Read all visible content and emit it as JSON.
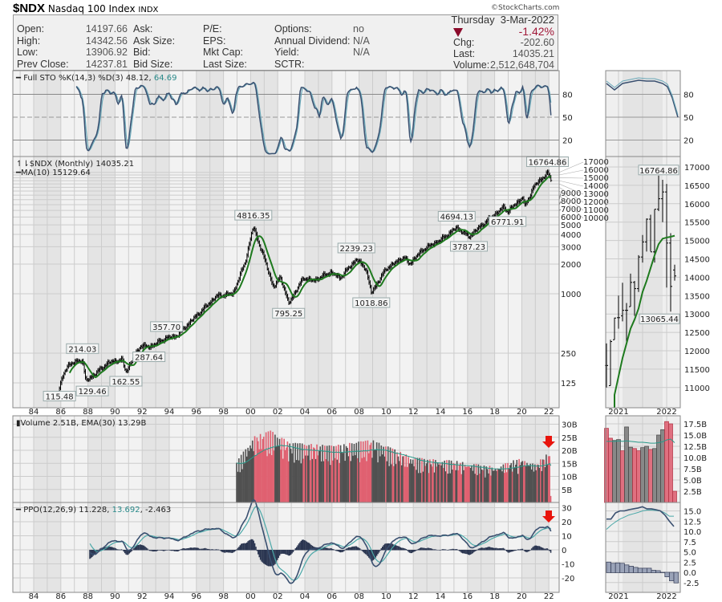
{
  "header": {
    "symbol": "$NDX",
    "name": "Nasdaq 100 Index",
    "exchange": "INDX",
    "copyright": "©StockCharts.com",
    "col1": [
      {
        "label": "Open:",
        "value": "14197.66"
      },
      {
        "label": "High:",
        "value": "14342.56"
      },
      {
        "label": "Low:",
        "value": "13906.92"
      },
      {
        "label": "Prev Close:",
        "value": "14237.81"
      }
    ],
    "col2": [
      "Ask:",
      "Ask Size:",
      "Bid:",
      "Bid Size:"
    ],
    "col3": [
      "P/E:",
      "EPS:",
      "Mkt Cap:",
      "Last Size:"
    ],
    "col4": [
      {
        "label": "Options:",
        "value": "no"
      },
      {
        "label": "Annual Dividend:",
        "value": "N/A"
      },
      {
        "label": "Yield:",
        "value": "N/A"
      },
      {
        "label": "SCTR:",
        "value": ""
      }
    ],
    "date": "Thursday  3-Mar-2022",
    "pct_change": "-1.42%",
    "chg_label": "Chg:",
    "chg": "-202.60",
    "last_label": "Last:",
    "last": "14035.21",
    "volume_label": "Volume:",
    "volume": "2,512,648,704",
    "direction": "down",
    "down_color": "#8b0a2a"
  },
  "chart_data": [
    {
      "type": "line",
      "panel": "sto",
      "legend": "Full STO %K(14,3) %D(3)",
      "k": "48.12",
      "d": "64.69",
      "yticks": [
        80,
        50,
        20
      ]
    },
    {
      "type": "ohlc",
      "panel": "price",
      "legend": "$NDX (Monthly) 14035.21",
      "ma_legend": "MA(10) 15129.64",
      "scale": "log",
      "yticks": [
        "17000",
        "16000",
        "15000",
        "14000",
        "13000",
        "12000",
        "11000",
        "10000",
        "9000",
        "8000",
        "7000",
        "6000",
        "5000",
        "4000",
        "3000",
        "2000",
        "1000",
        "250",
        "125"
      ],
      "keypoints": [
        [
          1985.9,
          115
        ],
        [
          1986.5,
          190
        ],
        [
          1987.6,
          214
        ],
        [
          1987.85,
          129.46
        ],
        [
          1989.5,
          200
        ],
        [
          1990.5,
          215
        ],
        [
          1990.8,
          162.55
        ],
        [
          1991.9,
          300
        ],
        [
          1992.5,
          287.64
        ],
        [
          1993.8,
          357.7
        ],
        [
          1994.5,
          370
        ],
        [
          1995.9,
          580
        ],
        [
          1997.5,
          950
        ],
        [
          1998.7,
          1000
        ],
        [
          1999.6,
          2100
        ],
        [
          2000.2,
          4816.35
        ],
        [
          2000.5,
          3600
        ],
        [
          2001.0,
          2300
        ],
        [
          2001.7,
          1150
        ],
        [
          2002.2,
          1500
        ],
        [
          2002.8,
          795.25
        ],
        [
          2003.9,
          1450
        ],
        [
          2004.6,
          1350
        ],
        [
          2005.9,
          1650
        ],
        [
          2006.6,
          1450
        ],
        [
          2007.8,
          2239.23
        ],
        [
          2008.5,
          1800
        ],
        [
          2008.9,
          1018.86
        ],
        [
          2010.0,
          1800
        ],
        [
          2011.3,
          2350
        ],
        [
          2011.7,
          2000
        ],
        [
          2012.7,
          2800
        ],
        [
          2014.0,
          3500
        ],
        [
          2015.2,
          4694.13
        ],
        [
          2016.1,
          3787.23
        ],
        [
          2017.0,
          4900
        ],
        [
          2018.7,
          7600
        ],
        [
          2018.95,
          6771.91
        ],
        [
          2020.1,
          9600
        ],
        [
          2020.2,
          7500
        ],
        [
          2020.9,
          12300
        ],
        [
          2021.9,
          16764.86
        ],
        [
          2022.17,
          14035.21
        ]
      ],
      "annotations": [
        {
          "text": "115.48",
          "at": [
            1985.9,
            115
          ],
          "pos": "below"
        },
        {
          "text": "214.03",
          "at": [
            1987.6,
            214
          ],
          "pos": "above"
        },
        {
          "text": "129.46",
          "at": [
            1987.85,
            129.46
          ],
          "pos": "below"
        },
        {
          "text": "162.55",
          "at": [
            1990.8,
            162.55
          ],
          "pos": "below"
        },
        {
          "text": "287.64",
          "at": [
            1992.5,
            287.64
          ],
          "pos": "below"
        },
        {
          "text": "357.70",
          "at": [
            1993.8,
            357.7
          ],
          "pos": "above"
        },
        {
          "text": "4816.35",
          "at": [
            2000.2,
            4816.35
          ],
          "pos": "above"
        },
        {
          "text": "795.25",
          "at": [
            2002.8,
            795.25
          ],
          "pos": "below"
        },
        {
          "text": "2239.23",
          "at": [
            2007.8,
            2239.23
          ],
          "pos": "above"
        },
        {
          "text": "1018.86",
          "at": [
            2008.9,
            1018.86
          ],
          "pos": "below"
        },
        {
          "text": "4694.13",
          "at": [
            2015.2,
            4694.13
          ],
          "pos": "above"
        },
        {
          "text": "3787.23",
          "at": [
            2016.1,
            3787.23
          ],
          "pos": "below"
        },
        {
          "text": "6771.91",
          "at": [
            2018.95,
            6771.91
          ],
          "pos": "below"
        },
        {
          "text": "16764.86",
          "at": [
            2021.9,
            16764.86
          ],
          "pos": "above"
        }
      ]
    },
    {
      "type": "bar",
      "panel": "volume",
      "legend": "Volume 2.51B, EMA(30) 13.29B",
      "yticks": [
        "30B",
        "25B",
        "20B",
        "15B",
        "10B",
        "5B"
      ],
      "keypoints_billions": [
        [
          1998.9,
          13
        ],
        [
          2000.2,
          22
        ],
        [
          2001.5,
          24
        ],
        [
          2003,
          20
        ],
        [
          2006,
          19
        ],
        [
          2009,
          21
        ],
        [
          2012,
          15
        ],
        [
          2015,
          14
        ],
        [
          2018,
          12
        ],
        [
          2020,
          15
        ],
        [
          2021,
          13
        ],
        [
          2022.1,
          17
        ]
      ],
      "colors": {
        "down": "#e06070",
        "up": "#808080"
      }
    },
    {
      "type": "line",
      "panel": "ppo",
      "legend": "PPO(12,26,9)",
      "ppo": "11.228",
      "signal": "13.692",
      "hist": "-2.463",
      "yticks": [
        30,
        20,
        10,
        0,
        -10,
        -20
      ]
    },
    {
      "type": "ohlc",
      "panel": "zoom-price",
      "xticks": [
        "2021",
        "2022"
      ],
      "yticks": [
        17000,
        16500,
        16000,
        15500,
        15000,
        14500,
        14000,
        13500,
        13000,
        12500,
        12000,
        11500,
        11000
      ],
      "bars": [
        [
          11600,
          12200,
          11000,
          11600
        ],
        [
          11050,
          12300,
          11050,
          12250
        ],
        [
          12300,
          12900,
          12300,
          12890
        ],
        [
          12900,
          13500,
          12600,
          12900
        ],
        [
          12950,
          13850,
          12800,
          13100
        ],
        [
          13100,
          13300,
          12200,
          13100
        ],
        [
          13200,
          14100,
          13200,
          13860
        ],
        [
          13860,
          13900,
          12950,
          13690
        ],
        [
          13690,
          14600,
          13600,
          14550
        ],
        [
          14550,
          15150,
          14400,
          14960
        ],
        [
          14960,
          15600,
          14700,
          15580
        ],
        [
          15580,
          15700,
          14700,
          14690
        ],
        [
          14690,
          15850,
          14400,
          15850
        ],
        [
          15850,
          16764.86,
          15800,
          16135
        ],
        [
          16135,
          16650,
          15500,
          16320
        ],
        [
          16320,
          16540,
          13720,
          14930
        ],
        [
          14930,
          15200,
          13065.44,
          13750
        ],
        [
          14197.66,
          14342.56,
          13906.92,
          14035.21
        ]
      ],
      "ma10": [
        null,
        null,
        10800,
        11300,
        11800,
        12200,
        12600,
        12850,
        13150,
        13600,
        13900,
        14250,
        14600,
        14900,
        15050,
        15080,
        15100,
        15130
      ],
      "annotations": [
        {
          "text": "16764.86",
          "pos": "above"
        },
        {
          "text": "13065.44",
          "pos": "below"
        }
      ]
    },
    {
      "type": "bar",
      "panel": "zoom-volume",
      "yticks": [
        "17.5B",
        "15.0B",
        "12.5B",
        "10.0B",
        "7.5B",
        "5.0B",
        "2.5B"
      ],
      "values_billions": [
        16.5,
        14.3,
        13.8,
        14,
        11.5,
        16.8,
        12.3,
        12,
        11.5,
        12.2,
        12.5,
        11.8,
        12,
        15,
        16.2,
        18,
        17.5,
        2.5
      ],
      "down": [
        1,
        1,
        0,
        0,
        1,
        0,
        0,
        1,
        1,
        0,
        0,
        1,
        0,
        0,
        0,
        1,
        1,
        1
      ],
      "ema30": [
        13.6,
        13.6,
        13.6,
        13.7,
        13.6,
        13.7,
        13.6,
        13.5,
        13.4,
        13.4,
        13.3,
        13.2,
        13.2,
        13.3,
        13.5,
        13.9,
        14.1,
        13.3
      ]
    },
    {
      "type": "line",
      "panel": "zoom-ppo",
      "yticks": [
        "15.0",
        "12.5",
        "10.0",
        "7.5",
        "5.0",
        "2.5",
        "0.0",
        "-2.5"
      ],
      "ppo": [
        13,
        13,
        14.5,
        15,
        15,
        15.3,
        15.5,
        15.7,
        16,
        15.5,
        15.5,
        15.3,
        15,
        14,
        12.5,
        11.2
      ],
      "signal": [
        10.5,
        11.5,
        12.3,
        13,
        13.5,
        14,
        14.3,
        14.6,
        15,
        15.2,
        15.2,
        15.1,
        15,
        14.5,
        13.7,
        13.7
      ],
      "hist": [
        2.5,
        2.2,
        2.3,
        2.2,
        1.8,
        1.5,
        1.2,
        1,
        1,
        1,
        0.5,
        0.4,
        0,
        -1,
        -2,
        -2.5
      ]
    },
    {
      "type": "axis",
      "xticks": [
        "84",
        "86",
        "88",
        "90",
        "92",
        "94",
        "96",
        "98",
        "00",
        "02",
        "04",
        "06",
        "08",
        "10",
        "12",
        "14",
        "16",
        "18",
        "20",
        "22"
      ]
    }
  ]
}
